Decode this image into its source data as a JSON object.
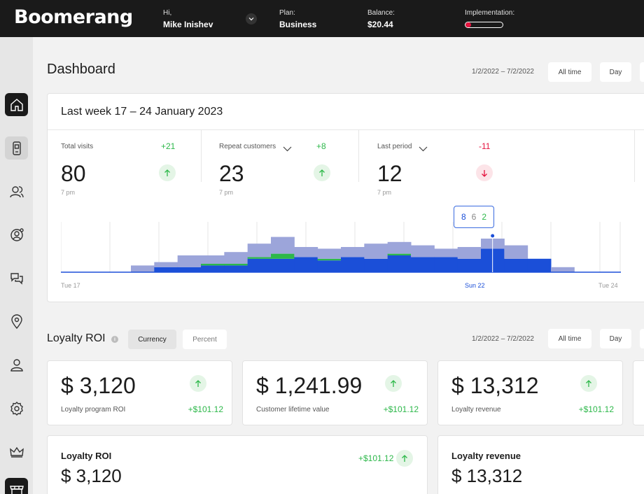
{
  "app": {
    "logo": "Boomerang"
  },
  "header": {
    "user_greeting": "Hi,",
    "user_name": "Mike Inishev",
    "plan_label": "Plan:",
    "plan_value": "Business",
    "balance_label": "Balance:",
    "balance_value": "$20.44",
    "implementation_label": "Implementation:",
    "implementation_progress": 0.15,
    "implementation_color": "#e5143f"
  },
  "sidebar": {
    "items": [
      {
        "icon": "home-icon",
        "state": "active"
      },
      {
        "icon": "mobile-device-icon",
        "state": "highlighted"
      },
      {
        "icon": "customers-icon",
        "state": "normal"
      },
      {
        "icon": "user-target-icon",
        "state": "normal"
      },
      {
        "icon": "chat-icon",
        "state": "normal"
      },
      {
        "icon": "location-pin-icon",
        "state": "normal"
      },
      {
        "icon": "user-icon",
        "state": "normal"
      },
      {
        "icon": "gear-icon",
        "state": "normal"
      },
      {
        "icon": "crown-icon",
        "state": "normal"
      },
      {
        "icon": "store-icon",
        "state": "active"
      }
    ]
  },
  "dashboard": {
    "title": "Dashboard",
    "date_range": "1/2/2022 – 7/2/2022",
    "filter_all_time": "All time",
    "filter_day": "Day"
  },
  "visits_card": {
    "title": "Last week 17 – 24 January 2023",
    "stats": [
      {
        "label": "Total visits",
        "value": "80",
        "sub": "7 pm",
        "delta": "+21",
        "trend": "up"
      },
      {
        "label": "Repeat customers",
        "value": "23",
        "sub": "7 pm",
        "delta": "+8",
        "trend": "up"
      },
      {
        "label": "Last period",
        "value": "12",
        "sub": "7 pm",
        "delta": "-11",
        "trend": "down"
      }
    ],
    "tooltip": {
      "a": "8",
      "b": "6",
      "c": "2"
    }
  },
  "chart_data": {
    "type": "area",
    "x_labels": [
      "Tue 17",
      "Sun 22",
      "Tue 24"
    ],
    "highlight_index": 18,
    "series": [
      {
        "color": "#1b4fd8",
        "values": [
          0,
          0,
          0,
          0,
          3,
          3,
          4,
          4,
          8,
          8,
          9,
          7,
          9,
          8,
          10,
          9,
          9,
          8,
          14,
          8,
          8,
          0,
          0,
          0
        ]
      },
      {
        "color": "#2db84a",
        "values": [
          0,
          0,
          0,
          0,
          0,
          0,
          1,
          1,
          1,
          3,
          0,
          1,
          0,
          0,
          1,
          0,
          0,
          0,
          0,
          0,
          0,
          0,
          0,
          0
        ]
      },
      {
        "color": "#9ca5da",
        "values": [
          0,
          0,
          0,
          4,
          3,
          7,
          5,
          7,
          8,
          10,
          6,
          6,
          6,
          9,
          7,
          7,
          5,
          7,
          6,
          8,
          0,
          3,
          0,
          0
        ]
      }
    ],
    "grid_columns": 24
  },
  "loyalty": {
    "title": "Loyalty ROI",
    "seg_currency": "Currency",
    "seg_percent": "Percent",
    "date_range": "1/2/2022 – 7/2/2022",
    "filter_all_time": "All time",
    "filter_day": "Day",
    "cards": [
      {
        "value": "$ 3,120",
        "label": "Loyalty program ROI",
        "delta": "+$101.12"
      },
      {
        "value": "$ 1,241.99",
        "label": "Customer lifetime value",
        "delta": "+$101.12"
      },
      {
        "value": "$ 13,312",
        "label": "Loyalty revenue",
        "delta": "+$101.12"
      }
    ],
    "bottom": [
      {
        "title": "Loyalty ROI",
        "value": "$ 3,120",
        "delta": "+$101.12"
      },
      {
        "title": "Loyalty revenue",
        "value": "$ 13,312"
      }
    ]
  }
}
